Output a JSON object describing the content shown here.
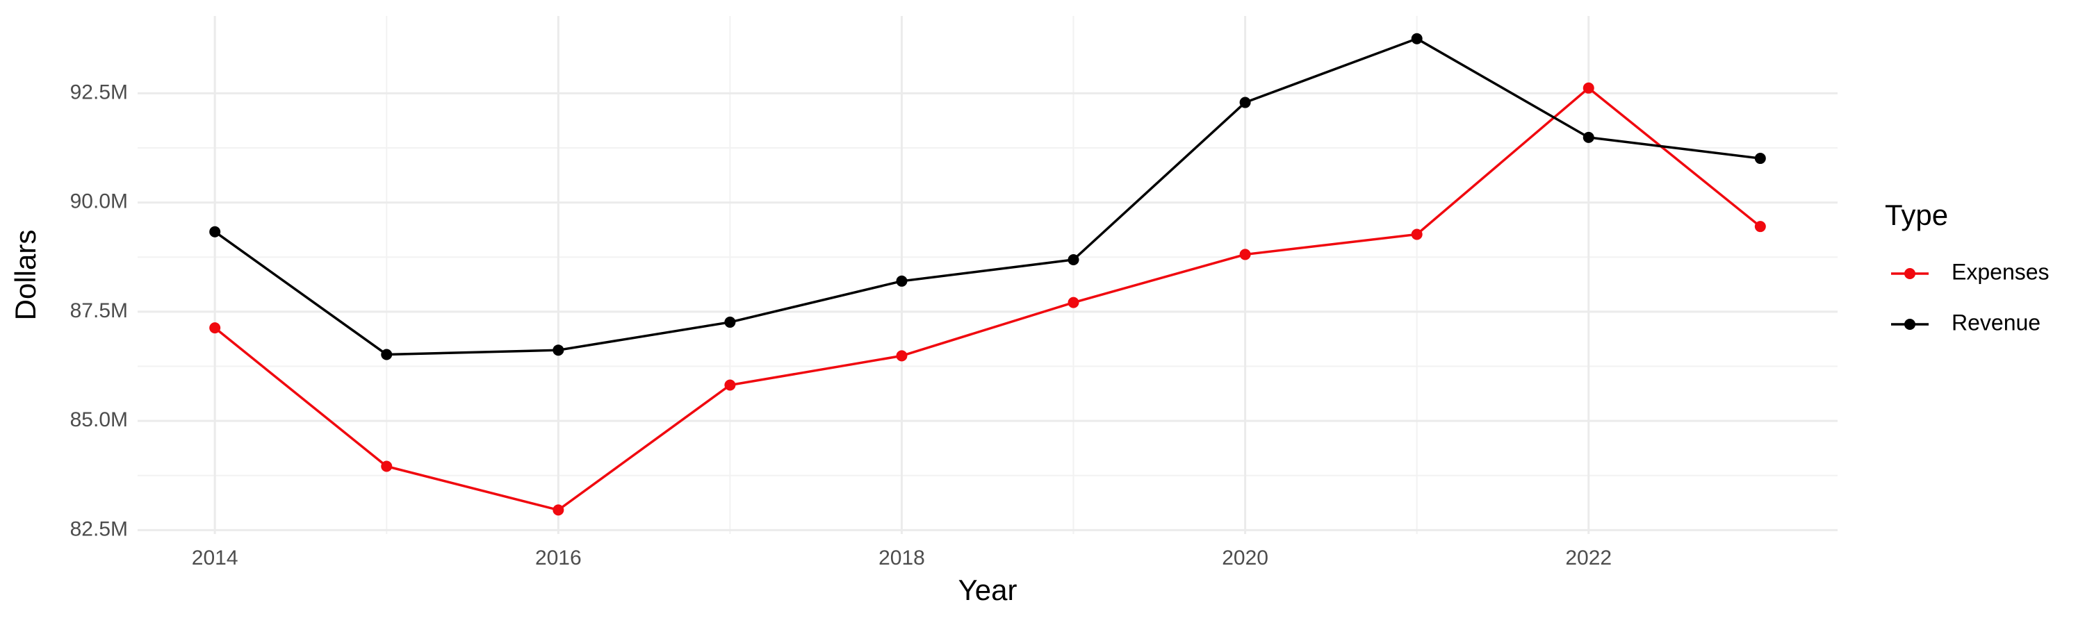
{
  "chart_data": {
    "type": "line",
    "x_label": "Year",
    "y_label": "Dollars",
    "legend_title": "Type",
    "legend": "right",
    "grid": true,
    "x": [
      2014,
      2015,
      2016,
      2017,
      2018,
      2019,
      2020,
      2021,
      2022,
      2023
    ],
    "series": [
      {
        "name": "Expenses",
        "color": "#f0090f",
        "values": [
          87130000,
          83960000,
          82960000,
          85820000,
          86490000,
          87710000,
          88810000,
          89270000,
          92620000,
          89450000
        ]
      },
      {
        "name": "Revenue",
        "color": "#000000",
        "values": [
          89330000,
          86520000,
          86620000,
          87260000,
          88200000,
          88690000,
          92290000,
          93750000,
          91490000,
          91010000
        ]
      }
    ],
    "xlim": [
      2013.55,
      2023.45
    ],
    "xticks": [
      2014,
      2016,
      2018,
      2020,
      2022
    ],
    "ylim": [
      82410000,
      94270000
    ],
    "yticks": [
      {
        "value": 82500000,
        "label": "82.5M"
      },
      {
        "value": 85000000,
        "label": "85.0M"
      },
      {
        "value": 87500000,
        "label": "87.5M"
      },
      {
        "value": 90000000,
        "label": "90.0M"
      },
      {
        "value": 92500000,
        "label": "92.5M"
      }
    ]
  }
}
